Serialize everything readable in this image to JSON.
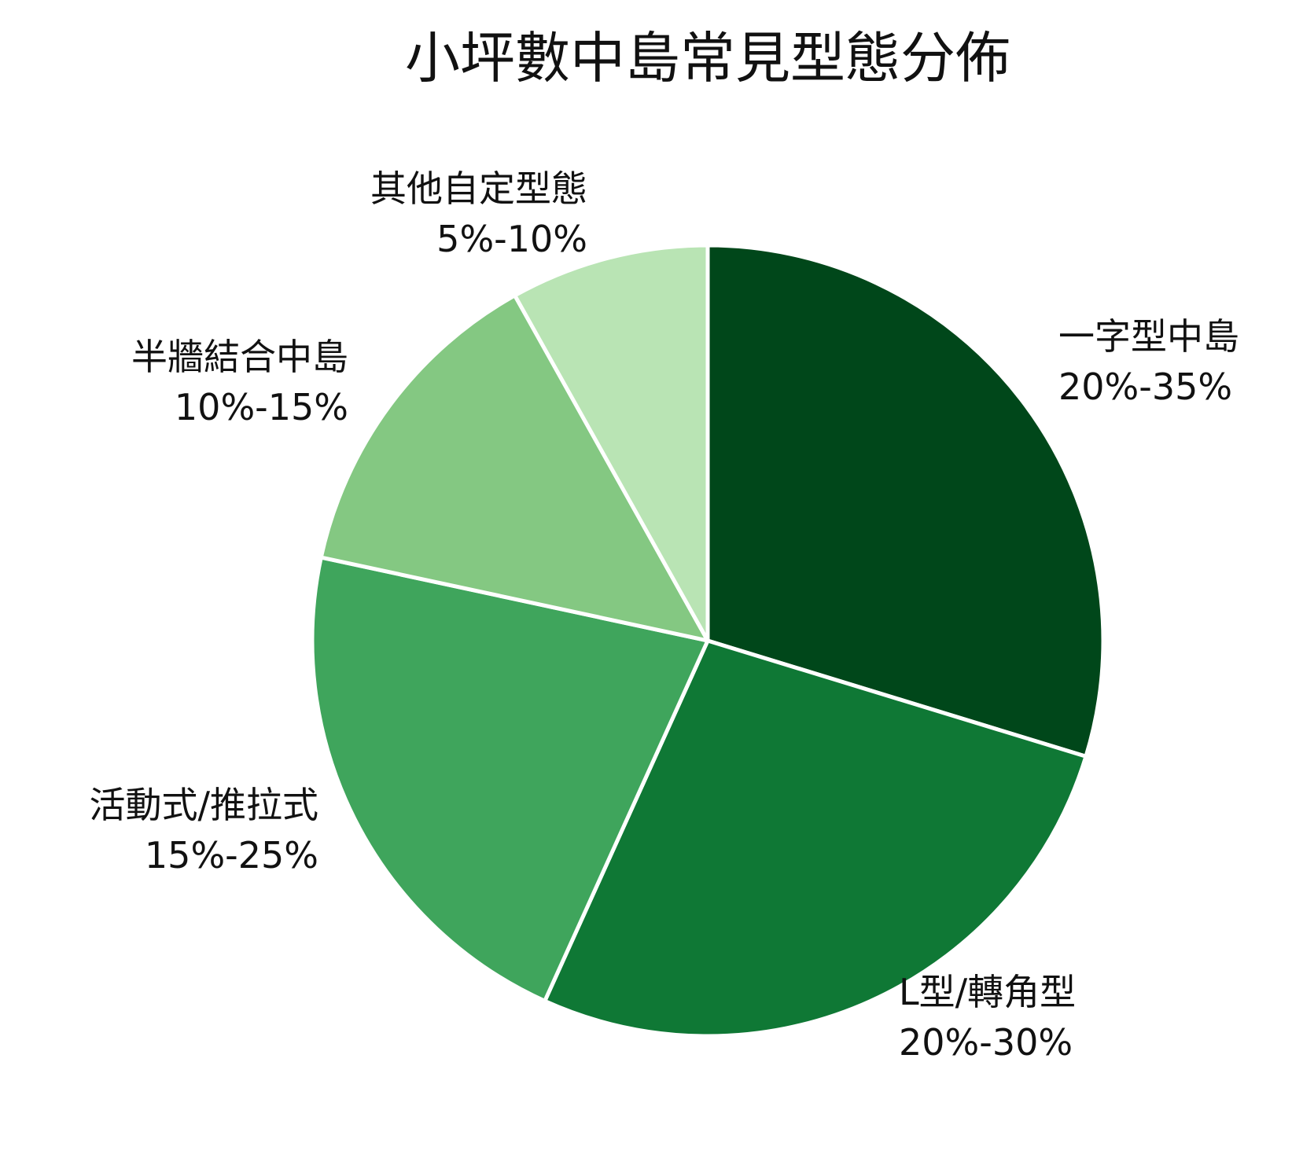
{
  "chart_data": {
    "type": "pie",
    "title": "小坪數中島常見型態分佈",
    "slices": [
      {
        "name": "一字型中島",
        "range": "20%-35%",
        "value": 27.5,
        "color": "#00471a"
      },
      {
        "name": "L型/轉角型",
        "range": "20%-30%",
        "value": 25.0,
        "color": "#0f7835"
      },
      {
        "name": "活動式/推拉式",
        "range": "15%-25%",
        "value": 20.0,
        "color": "#3fa55c"
      },
      {
        "name": "半牆結合中島",
        "range": "10%-15%",
        "value": 12.5,
        "color": "#84c882"
      },
      {
        "name": "其他自定型態",
        "range": "5%-10%",
        "value": 7.5,
        "color": "#b9e4b4"
      }
    ],
    "start_angle": "12 o'clock",
    "direction": "clockwise",
    "slice_border_color": "#ffffff"
  }
}
